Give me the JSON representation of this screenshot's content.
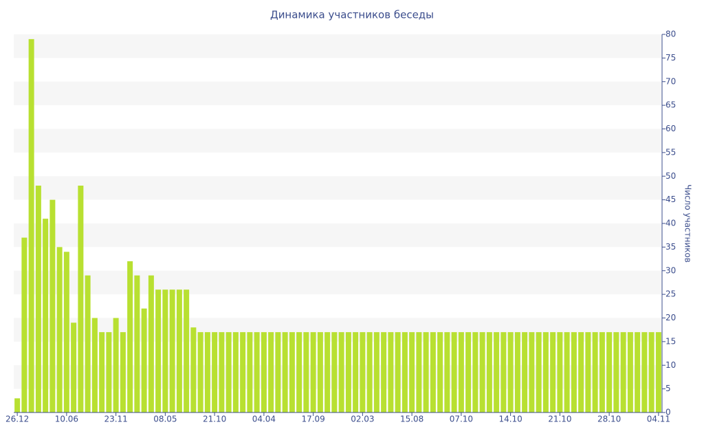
{
  "chart_data": {
    "type": "bar",
    "title": "Динамика участников беседы",
    "y_label": "Число участников",
    "categories": [
      "26.12",
      null,
      null,
      null,
      null,
      null,
      null,
      "10.06",
      null,
      null,
      null,
      null,
      null,
      null,
      "23.11",
      null,
      null,
      null,
      null,
      null,
      null,
      "08.05",
      null,
      null,
      null,
      null,
      null,
      null,
      "21.10",
      null,
      null,
      null,
      null,
      null,
      null,
      "04.04",
      null,
      null,
      null,
      null,
      null,
      null,
      "17.09",
      null,
      null,
      null,
      null,
      null,
      null,
      "02.03",
      null,
      null,
      null,
      null,
      null,
      null,
      "15.08",
      null,
      null,
      null,
      null,
      null,
      null,
      "07.10",
      null,
      null,
      null,
      null,
      null,
      null,
      "14.10",
      null,
      null,
      null,
      null,
      null,
      null,
      "21.10",
      null,
      null,
      null,
      null,
      null,
      null,
      "28.10",
      null,
      null,
      null,
      null,
      null,
      null,
      "04.11"
    ],
    "values": [
      3,
      37,
      79,
      48,
      41,
      45,
      35,
      34,
      19,
      48,
      29,
      20,
      17,
      17,
      20,
      17,
      32,
      29,
      22,
      29,
      26,
      26,
      26,
      26,
      26,
      18,
      17,
      17,
      17,
      17,
      17,
      17,
      17,
      17,
      17,
      17,
      17,
      17,
      17,
      17,
      17,
      17,
      17,
      17,
      17,
      17,
      17,
      17,
      17,
      17,
      17,
      17,
      17,
      17,
      17,
      17,
      17,
      17,
      17,
      17,
      17,
      17,
      17,
      17,
      17,
      17,
      17,
      17,
      17,
      17,
      17,
      17,
      17,
      17,
      17,
      17,
      17,
      17,
      17,
      17,
      17,
      17,
      17,
      17,
      17,
      17,
      17,
      17,
      17,
      17,
      17,
      17
    ],
    "color": "#b8e031",
    "ylim": [
      0,
      80
    ],
    "yticks": [
      0,
      5,
      10,
      15,
      20,
      25,
      30,
      35,
      40,
      45,
      50,
      55,
      60,
      65,
      70,
      75,
      80
    ],
    "grid": true
  }
}
